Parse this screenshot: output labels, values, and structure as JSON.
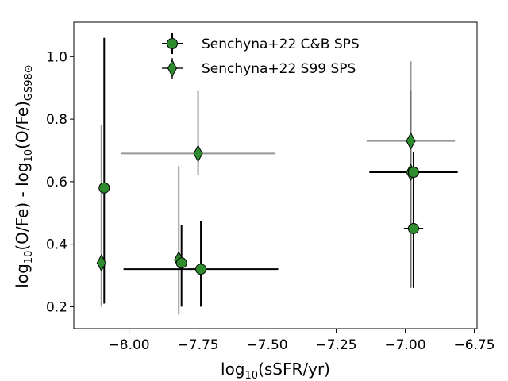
{
  "chart_data": {
    "type": "scatter",
    "xlabel": "log10(sSFR/yr)",
    "ylabel": "log10(O/Fe) - log10(O/Fe)GS98⊙",
    "xlim": [
      -8.2,
      -6.74
    ],
    "ylim": [
      0.13,
      1.11
    ],
    "xticks": [
      -8.0,
      -7.75,
      -7.5,
      -7.25,
      -7.0,
      -6.75
    ],
    "xtick_labels": [
      "−8.00",
      "−7.75",
      "−7.50",
      "−7.25",
      "−7.00",
      "−6.75"
    ],
    "yticks": [
      0.2,
      0.4,
      0.6,
      0.8,
      1.0
    ],
    "ytick_labels": [
      "0.2",
      "0.4",
      "0.6",
      "0.8",
      "1.0"
    ],
    "grid": false,
    "legend_position": "top-center",
    "series": [
      {
        "name": "Senchyna+22 C&B SPS",
        "marker": "circle",
        "color": "#2e8b2e",
        "error_color": "#000000",
        "points": [
          {
            "x": -8.09,
            "y": 0.58,
            "yerr_low": 0.37,
            "yerr_high": 0.48
          },
          {
            "x": -7.81,
            "y": 0.34,
            "yerr_low": 0.14,
            "yerr_high": 0.12
          },
          {
            "x": -7.74,
            "y": 0.32,
            "yerr_low": 0.12,
            "yerr_high": 0.155,
            "xerr_low": 0.28,
            "xerr_high": 0.28
          },
          {
            "x": -6.97,
            "y": 0.63,
            "yerr_low": 0.37,
            "yerr_high": 0.065,
            "xerr_low": 0.16,
            "xerr_high": 0.16
          },
          {
            "x": -6.97,
            "y": 0.45,
            "yerr_low": 0.19,
            "yerr_high": 0.12,
            "xerr_low": 0.035,
            "xerr_high": 0.035
          }
        ]
      },
      {
        "name": "Senchyna+22 S99 SPS",
        "marker": "thin_diamond",
        "color": "#2e8b2e",
        "error_color": "#555555",
        "points": [
          {
            "x": -8.1,
            "y": 0.34,
            "yerr_low": 0.14,
            "yerr_high": 0.44
          },
          {
            "x": -7.82,
            "y": 0.35,
            "yerr_low": 0.175,
            "yerr_high": 0.3
          },
          {
            "x": -7.75,
            "y": 0.69,
            "yerr_low": 0.07,
            "yerr_high": 0.2,
            "xerr_low": 0.28,
            "xerr_high": 0.28
          },
          {
            "x": -6.98,
            "y": 0.73,
            "yerr_low": 0.47,
            "yerr_high": 0.255,
            "xerr_low": 0.16,
            "xerr_high": 0.16
          },
          {
            "x": -6.98,
            "y": 0.63,
            "yerr_low": 0.37,
            "yerr_high": 0.26
          }
        ]
      }
    ]
  }
}
